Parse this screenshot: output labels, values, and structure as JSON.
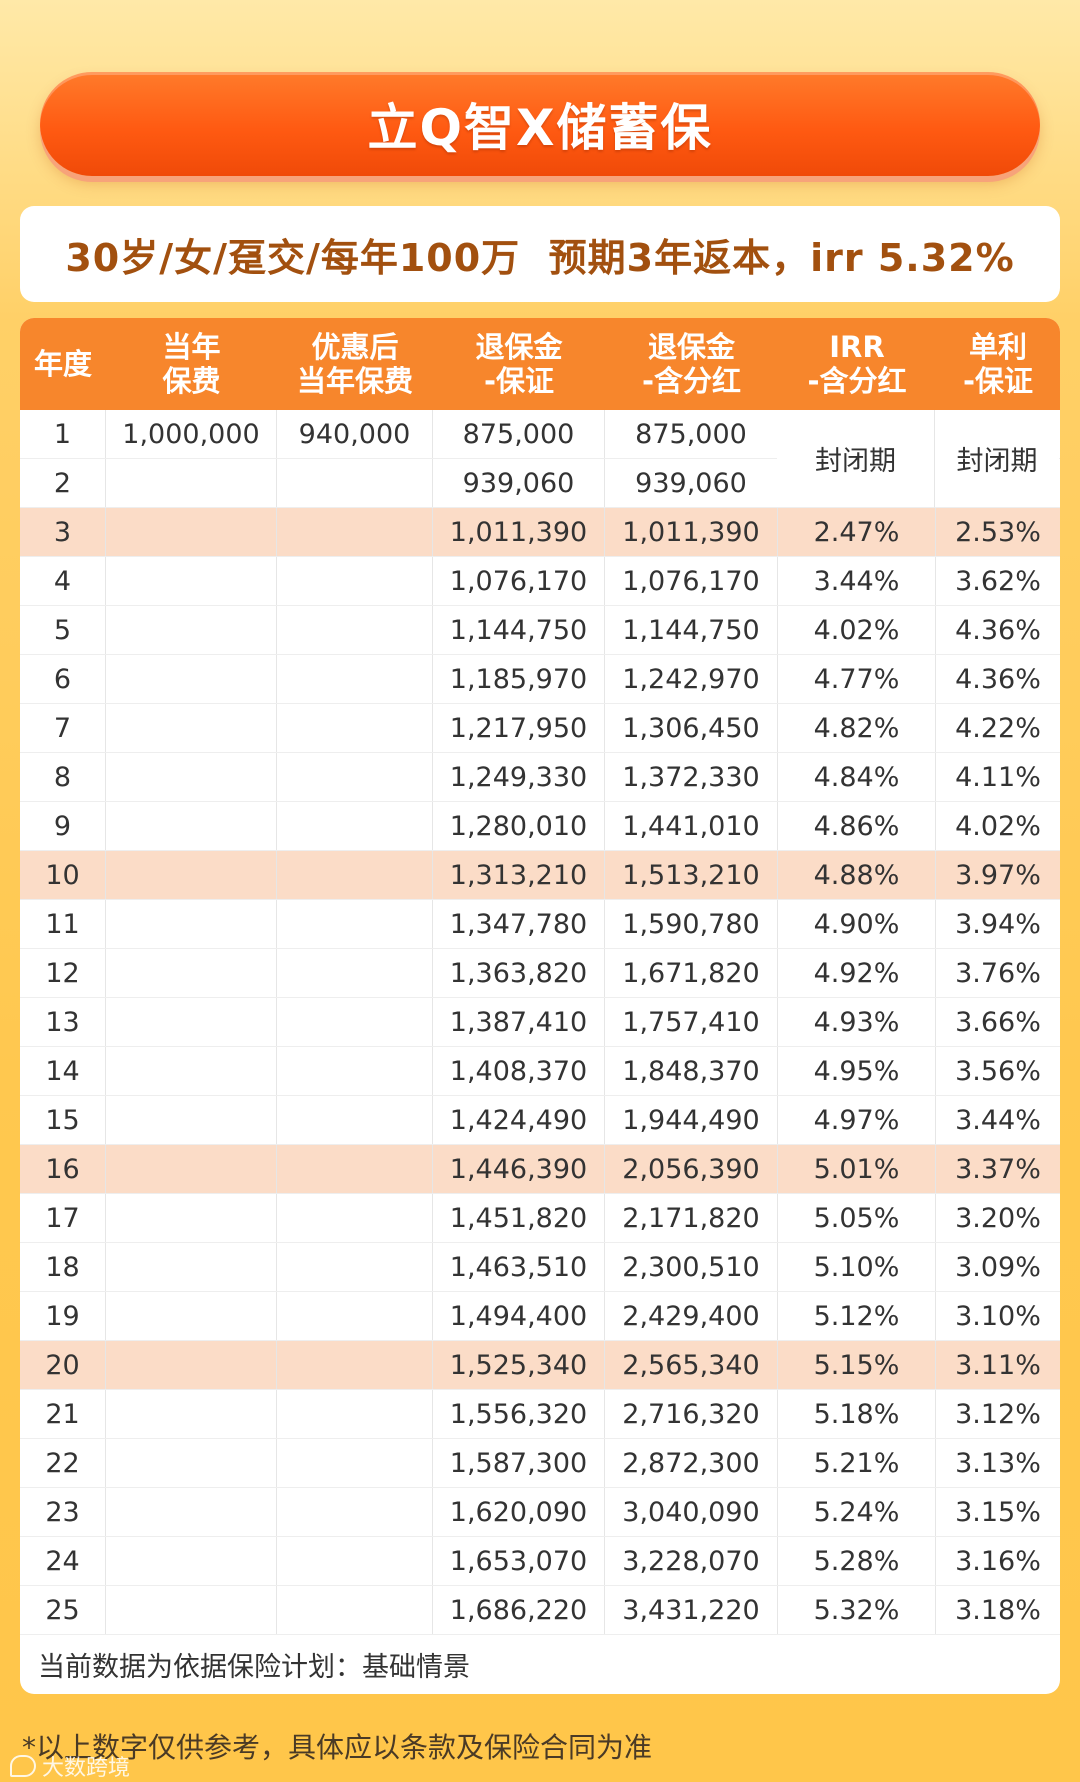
{
  "title": "立Q智X储蓄保",
  "subtitle": "30岁/女/趸交/每年100万  预期3年返本，irr 5.32%",
  "table": {
    "headers": [
      "年度",
      "当年\n保费",
      "优惠后\n当年保费",
      "退保金\n-保证",
      "退保金\n-含分红",
      "IRR\n-含分红",
      "单利\n-保证"
    ],
    "closed_label": "封闭期",
    "rows": [
      [
        "1",
        "1,000,000",
        "940,000",
        "875,000",
        "875,000",
        "",
        ""
      ],
      [
        "2",
        "",
        "",
        "939,060",
        "939,060",
        "",
        ""
      ],
      [
        "3",
        "",
        "",
        "1,011,390",
        "1,011,390",
        "2.47%",
        "2.53%"
      ],
      [
        "4",
        "",
        "",
        "1,076,170",
        "1,076,170",
        "3.44%",
        "3.62%"
      ],
      [
        "5",
        "",
        "",
        "1,144,750",
        "1,144,750",
        "4.02%",
        "4.36%"
      ],
      [
        "6",
        "",
        "",
        "1,185,970",
        "1,242,970",
        "4.77%",
        "4.36%"
      ],
      [
        "7",
        "",
        "",
        "1,217,950",
        "1,306,450",
        "4.82%",
        "4.22%"
      ],
      [
        "8",
        "",
        "",
        "1,249,330",
        "1,372,330",
        "4.84%",
        "4.11%"
      ],
      [
        "9",
        "",
        "",
        "1,280,010",
        "1,441,010",
        "4.86%",
        "4.02%"
      ],
      [
        "10",
        "",
        "",
        "1,313,210",
        "1,513,210",
        "4.88%",
        "3.97%"
      ],
      [
        "11",
        "",
        "",
        "1,347,780",
        "1,590,780",
        "4.90%",
        "3.94%"
      ],
      [
        "12",
        "",
        "",
        "1,363,820",
        "1,671,820",
        "4.92%",
        "3.76%"
      ],
      [
        "13",
        "",
        "",
        "1,387,410",
        "1,757,410",
        "4.93%",
        "3.66%"
      ],
      [
        "14",
        "",
        "",
        "1,408,370",
        "1,848,370",
        "4.95%",
        "3.56%"
      ],
      [
        "15",
        "",
        "",
        "1,424,490",
        "1,944,490",
        "4.97%",
        "3.44%"
      ],
      [
        "16",
        "",
        "",
        "1,446,390",
        "2,056,390",
        "5.01%",
        "3.37%"
      ],
      [
        "17",
        "",
        "",
        "1,451,820",
        "2,171,820",
        "5.05%",
        "3.20%"
      ],
      [
        "18",
        "",
        "",
        "1,463,510",
        "2,300,510",
        "5.10%",
        "3.09%"
      ],
      [
        "19",
        "",
        "",
        "1,494,400",
        "2,429,400",
        "5.12%",
        "3.10%"
      ],
      [
        "20",
        "",
        "",
        "1,525,340",
        "2,565,340",
        "5.15%",
        "3.11%"
      ],
      [
        "21",
        "",
        "",
        "1,556,320",
        "2,716,320",
        "5.18%",
        "3.12%"
      ],
      [
        "22",
        "",
        "",
        "1,587,300",
        "2,872,300",
        "5.21%",
        "3.13%"
      ],
      [
        "23",
        "",
        "",
        "1,620,090",
        "3,040,090",
        "5.24%",
        "3.15%"
      ],
      [
        "24",
        "",
        "",
        "1,653,070",
        "3,228,070",
        "5.28%",
        "3.16%"
      ],
      [
        "25",
        "",
        "",
        "1,686,220",
        "3,431,220",
        "5.32%",
        "3.18%"
      ]
    ],
    "highlight_years": [
      "3",
      "10",
      "16",
      "20"
    ],
    "note": "当前数据为依据保险计划：基础情景"
  },
  "disclaimer": "*以上数字仅供参考，具体应以条款及保险合同为准",
  "watermark": "大数跨境",
  "colors": {
    "header_orange": "#f7862c",
    "title_orange": "#ff5a12",
    "subtitle_brown": "#a2500f",
    "highlight_row": "#fbdcc7"
  }
}
